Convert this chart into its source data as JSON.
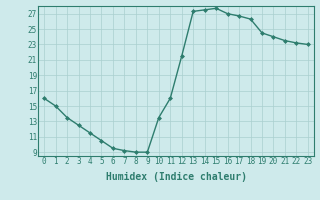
{
  "x": [
    0,
    1,
    2,
    3,
    4,
    5,
    6,
    7,
    8,
    9,
    10,
    11,
    12,
    13,
    14,
    15,
    16,
    17,
    18,
    19,
    20,
    21,
    22,
    23
  ],
  "y": [
    16.0,
    15.0,
    13.5,
    12.5,
    11.5,
    10.5,
    9.5,
    9.2,
    9.0,
    9.0,
    13.5,
    16.0,
    21.5,
    27.3,
    27.5,
    27.7,
    27.0,
    26.7,
    26.3,
    24.5,
    24.0,
    23.5,
    23.2,
    23.0
  ],
  "line_color": "#2e7d6e",
  "marker": "D",
  "marker_size": 2.0,
  "bg_color": "#ceeaeb",
  "grid_color": "#aacfcf",
  "xlabel": "Humidex (Indice chaleur)",
  "ylim": [
    8.5,
    28.0
  ],
  "xlim": [
    -0.5,
    23.5
  ],
  "yticks": [
    9,
    11,
    13,
    15,
    17,
    19,
    21,
    23,
    25,
    27
  ],
  "xticks": [
    0,
    1,
    2,
    3,
    4,
    5,
    6,
    7,
    8,
    9,
    10,
    11,
    12,
    13,
    14,
    15,
    16,
    17,
    18,
    19,
    20,
    21,
    22,
    23
  ],
  "tick_fontsize": 5.5,
  "xlabel_fontsize": 7.0,
  "linewidth": 1.0,
  "spine_color": "#2e7d6e"
}
